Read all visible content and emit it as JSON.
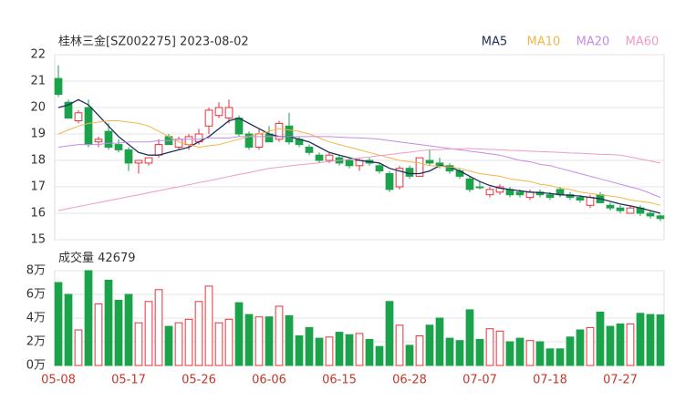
{
  "chart_data": {
    "type": "candlestick",
    "title": "桂林三金[SZ002275] 2023-08-02",
    "categories": [
      "05-08",
      null,
      null,
      null,
      null,
      null,
      null,
      "05-17",
      null,
      null,
      null,
      null,
      null,
      null,
      "05-26",
      null,
      null,
      null,
      null,
      null,
      null,
      "06-06",
      null,
      null,
      null,
      null,
      null,
      null,
      "06-15",
      null,
      null,
      null,
      null,
      null,
      null,
      "06-28",
      null,
      null,
      null,
      null,
      null,
      null,
      "07-07",
      null,
      null,
      null,
      null,
      null,
      null,
      "07-18",
      null,
      null,
      null,
      null,
      null,
      null,
      "07-27",
      null,
      null,
      null,
      null
    ],
    "open": [
      21.1,
      20.2,
      19.5,
      20.0,
      18.7,
      19.1,
      18.6,
      18.4,
      17.9,
      17.9,
      18.2,
      18.9,
      18.5,
      18.6,
      18.7,
      19.3,
      19.7,
      19.6,
      19.6,
      19.0,
      18.5,
      19.0,
      18.8,
      19.3,
      18.8,
      18.5,
      18.2,
      18.0,
      18.1,
      18.0,
      17.8,
      18.0,
      17.8,
      17.5,
      17.0,
      17.7,
      17.4,
      18.0,
      17.9,
      17.8,
      17.6,
      17.3,
      17.0,
      16.7,
      16.8,
      16.9,
      16.8,
      16.6,
      16.8,
      16.7,
      16.9,
      16.7,
      16.6,
      16.3,
      16.7,
      16.3,
      16.2,
      16.0,
      16.2,
      16.0,
      15.9
    ],
    "high": [
      21.6,
      20.3,
      19.9,
      20.3,
      18.9,
      19.4,
      18.8,
      18.5,
      18.0,
      18.1,
      18.8,
      19.0,
      18.9,
      19.0,
      19.2,
      20.0,
      20.2,
      20.3,
      19.7,
      19.1,
      19.2,
      19.3,
      19.5,
      19.8,
      18.9,
      18.6,
      18.3,
      18.3,
      18.2,
      18.1,
      18.1,
      18.1,
      17.9,
      17.6,
      17.8,
      17.8,
      18.1,
      18.4,
      18.1,
      17.9,
      17.7,
      17.4,
      17.2,
      17.0,
      17.1,
      17.0,
      16.9,
      16.9,
      16.9,
      16.8,
      17.0,
      16.8,
      16.7,
      16.7,
      16.8,
      16.4,
      16.3,
      16.3,
      16.3,
      16.1,
      15.95
    ],
    "low": [
      20.4,
      19.6,
      19.4,
      18.5,
      18.5,
      18.4,
      18.3,
      17.6,
      17.5,
      17.8,
      18.1,
      18.6,
      18.4,
      18.4,
      18.6,
      19.0,
      19.6,
      19.4,
      18.9,
      18.4,
      18.4,
      18.7,
      18.7,
      18.6,
      18.5,
      18.2,
      17.9,
      17.9,
      17.8,
      17.7,
      17.6,
      17.8,
      17.5,
      16.8,
      16.9,
      17.3,
      17.4,
      17.8,
      17.7,
      17.5,
      17.3,
      16.8,
      16.9,
      16.6,
      16.7,
      16.6,
      16.6,
      16.5,
      16.6,
      16.5,
      16.6,
      16.5,
      16.4,
      16.2,
      16.4,
      16.1,
      16.0,
      16.0,
      15.9,
      15.8,
      15.7
    ],
    "close": [
      20.5,
      19.6,
      19.8,
      18.6,
      18.8,
      18.5,
      18.4,
      17.9,
      18.0,
      18.1,
      18.6,
      18.6,
      18.8,
      18.9,
      19.0,
      19.9,
      20.0,
      20.0,
      19.0,
      18.5,
      19.0,
      18.7,
      19.4,
      18.7,
      18.6,
      18.3,
      18.0,
      18.2,
      17.9,
      17.8,
      18.0,
      17.9,
      17.6,
      16.9,
      17.7,
      17.4,
      18.1,
      17.9,
      17.8,
      17.6,
      17.4,
      16.9,
      17.0,
      16.9,
      17.0,
      16.7,
      16.7,
      16.8,
      16.7,
      16.6,
      16.7,
      16.6,
      16.5,
      16.6,
      16.4,
      16.2,
      16.1,
      16.2,
      16.0,
      15.9,
      15.8
    ],
    "series": [
      {
        "name": "MA5",
        "color": "#1f2d5a",
        "values": [
          20.0,
          20.1,
          20.3,
          20.1,
          19.7,
          19.3,
          18.9,
          18.6,
          18.3,
          18.2,
          18.2,
          18.3,
          18.4,
          18.5,
          18.7,
          18.9,
          19.2,
          19.5,
          19.6,
          19.4,
          19.2,
          19.0,
          18.9,
          18.9,
          18.8,
          18.7,
          18.5,
          18.3,
          18.2,
          18.1,
          18.0,
          17.95,
          17.9,
          17.7,
          17.6,
          17.5,
          17.5,
          17.6,
          17.8,
          17.75,
          17.6,
          17.4,
          17.2,
          17.05,
          16.95,
          16.9,
          16.85,
          16.8,
          16.78,
          16.75,
          16.7,
          16.68,
          16.65,
          16.6,
          16.55,
          16.45,
          16.35,
          16.28,
          16.2,
          16.1,
          16.0
        ]
      },
      {
        "name": "MA10",
        "color": "#f2b64a",
        "values": [
          19.0,
          19.15,
          19.3,
          19.4,
          19.45,
          19.5,
          19.5,
          19.45,
          19.4,
          19.3,
          19.1,
          18.9,
          18.7,
          18.6,
          18.5,
          18.55,
          18.6,
          18.7,
          18.8,
          18.9,
          19.0,
          19.1,
          19.2,
          19.15,
          19.1,
          19.0,
          18.85,
          18.7,
          18.6,
          18.5,
          18.4,
          18.3,
          18.2,
          18.1,
          18.0,
          17.95,
          17.9,
          17.8,
          17.78,
          17.75,
          17.7,
          17.6,
          17.5,
          17.45,
          17.4,
          17.3,
          17.25,
          17.2,
          17.1,
          17.05,
          16.95,
          16.9,
          16.8,
          16.75,
          16.7,
          16.65,
          16.6,
          16.5,
          16.45,
          16.4,
          16.3
        ]
      },
      {
        "name": "MA20",
        "color": "#c48ce8",
        "values": [
          18.5,
          18.55,
          18.6,
          18.6,
          18.6,
          18.65,
          18.65,
          18.7,
          18.7,
          18.7,
          18.75,
          18.75,
          18.8,
          18.8,
          18.8,
          18.85,
          18.85,
          18.85,
          18.9,
          18.9,
          18.9,
          18.9,
          18.9,
          18.9,
          18.9,
          18.9,
          18.9,
          18.9,
          18.88,
          18.86,
          18.85,
          18.83,
          18.8,
          18.75,
          18.7,
          18.65,
          18.6,
          18.55,
          18.5,
          18.45,
          18.4,
          18.35,
          18.3,
          18.25,
          18.2,
          18.1,
          18.0,
          17.95,
          17.85,
          17.8,
          17.7,
          17.6,
          17.5,
          17.4,
          17.3,
          17.2,
          17.1,
          17.0,
          16.9,
          16.75,
          16.6
        ]
      },
      {
        "name": "MA60",
        "color": "#f09ac8",
        "values": [
          16.1,
          16.18,
          16.25,
          16.33,
          16.4,
          16.48,
          16.55,
          16.63,
          16.7,
          16.78,
          16.85,
          16.93,
          17.0,
          17.08,
          17.16,
          17.23,
          17.31,
          17.39,
          17.47,
          17.54,
          17.62,
          17.7,
          17.74,
          17.79,
          17.83,
          17.87,
          17.91,
          17.96,
          18.0,
          18.04,
          18.09,
          18.13,
          18.18,
          18.22,
          18.27,
          18.31,
          18.36,
          18.4,
          18.41,
          18.43,
          18.44,
          18.45,
          18.43,
          18.42,
          18.4,
          18.38,
          18.37,
          18.35,
          18.33,
          18.32,
          18.3,
          18.28,
          18.27,
          18.25,
          18.23,
          18.22,
          18.2,
          18.13,
          18.05,
          17.98,
          17.9
        ]
      }
    ],
    "up_color": "#e8323c",
    "down_color": "#1aa34a",
    "ylim": [
      15,
      22
    ],
    "yticks": [
      15,
      16,
      17,
      18,
      19,
      20,
      21,
      22
    ],
    "grid": true,
    "volume_label": "成交量",
    "volume": [
      70000,
      60000,
      30000,
      80000,
      52000,
      72000,
      55000,
      60000,
      36000,
      54000,
      64000,
      33000,
      36000,
      39000,
      54000,
      67000,
      36000,
      39000,
      53000,
      43000,
      41000,
      41000,
      50000,
      42000,
      25000,
      32000,
      23000,
      24000,
      28000,
      26000,
      27000,
      22000,
      16000,
      54000,
      34000,
      17000,
      25000,
      34000,
      40000,
      23000,
      21000,
      47000,
      22000,
      31000,
      29000,
      20000,
      23000,
      21000,
      20000,
      14000,
      14000,
      24000,
      30000,
      32000,
      45000,
      33000,
      35000,
      35000,
      44000,
      43000,
      42679
    ],
    "volume_ylim": [
      0,
      80000
    ],
    "volume_yticks": [
      {
        "value": 0,
        "label": "0万"
      },
      {
        "value": 20000,
        "label": "2万"
      },
      {
        "value": 40000,
        "label": "4万"
      },
      {
        "value": 60000,
        "label": "6万"
      },
      {
        "value": 80000,
        "label": "8万"
      }
    ]
  }
}
